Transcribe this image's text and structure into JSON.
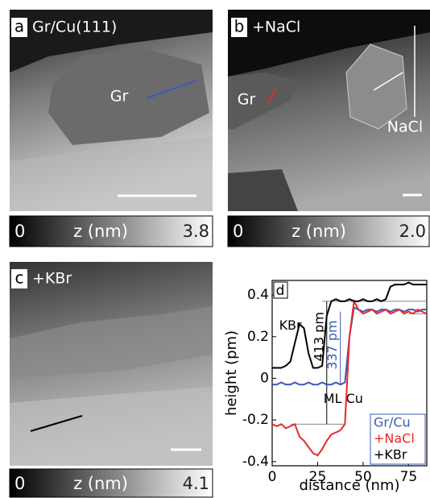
{
  "panels": [
    {
      "label": "a",
      "title": "Gr/Cu(111)",
      "annotations": [
        "Gr"
      ],
      "colorbar": {
        "min": "0",
        "label": "z (nm)",
        "max": "3.8"
      }
    },
    {
      "label": "b",
      "title": "+NaCl",
      "annotations": [
        "Gr",
        "NaCl"
      ],
      "colorbar": {
        "min": "0",
        "label": "z (nm)",
        "max": "2.0"
      }
    },
    {
      "label": "c",
      "title": "+KBr",
      "colorbar": {
        "min": "0",
        "label": "z (nm)",
        "max": "4.1"
      }
    }
  ],
  "chart_data": {
    "type": "line",
    "panel_label": "d",
    "x_label": "distance (nm)",
    "y_label": "height (pm)",
    "x": [
      0,
      2.5,
      5,
      7.5,
      10,
      12.5,
      15,
      17.5,
      20,
      22.5,
      25,
      27.5,
      30,
      32.5,
      35,
      37.5,
      40,
      42.5,
      45,
      47.5,
      50,
      52.5,
      55,
      57.5,
      60,
      62.5,
      65,
      67.5,
      70,
      72.5,
      75,
      77.5,
      80,
      82.5,
      85
    ],
    "series": [
      {
        "name": "Gr/Cu",
        "color": "#3b5bb5",
        "values": [
          -0.03,
          -0.03,
          -0.02,
          -0.03,
          -0.03,
          -0.02,
          -0.03,
          -0.03,
          -0.02,
          -0.03,
          -0.03,
          -0.02,
          -0.03,
          -0.03,
          -0.02,
          -0.03,
          -0.02,
          0.2,
          0.34,
          0.33,
          0.32,
          0.33,
          0.33,
          0.32,
          0.33,
          0.33,
          0.32,
          0.33,
          0.33,
          0.32,
          0.33,
          0.33,
          0.32,
          0.33,
          0.33
        ]
      },
      {
        "name": "+NaCl",
        "color": "#e8282a",
        "values": [
          -0.22,
          -0.23,
          -0.22,
          -0.24,
          -0.23,
          -0.22,
          -0.28,
          -0.3,
          -0.33,
          -0.36,
          -0.37,
          -0.34,
          -0.3,
          -0.27,
          -0.26,
          -0.25,
          -0.22,
          0.2,
          0.37,
          0.33,
          0.31,
          0.32,
          0.33,
          0.31,
          0.32,
          0.33,
          0.31,
          0.32,
          0.33,
          0.31,
          0.32,
          0.31,
          0.33,
          0.32,
          0.31
        ]
      },
      {
        "name": "+KBr",
        "color": "#000000",
        "values": [
          0.05,
          0.05,
          0.05,
          0.06,
          0.08,
          0.17,
          0.26,
          0.24,
          0.12,
          0.05,
          0.05,
          0.06,
          0.3,
          0.37,
          0.38,
          0.37,
          0.37,
          0.38,
          0.37,
          0.37,
          0.38,
          0.37,
          0.37,
          0.38,
          0.37,
          0.38,
          0.44,
          0.45,
          0.45,
          0.45,
          0.46,
          0.45,
          0.45,
          0.45,
          0.45
        ]
      }
    ],
    "annotations": [
      "KBr",
      "413 pm",
      "337 pm",
      "ML Cu"
    ],
    "xlim": [
      0,
      85
    ],
    "ylim": [
      -0.42,
      0.47
    ],
    "xticks": [
      0,
      25,
      50,
      75
    ],
    "yticks": [
      -0.4,
      -0.2,
      0,
      0.2,
      0.4
    ],
    "legend": "lower right"
  }
}
